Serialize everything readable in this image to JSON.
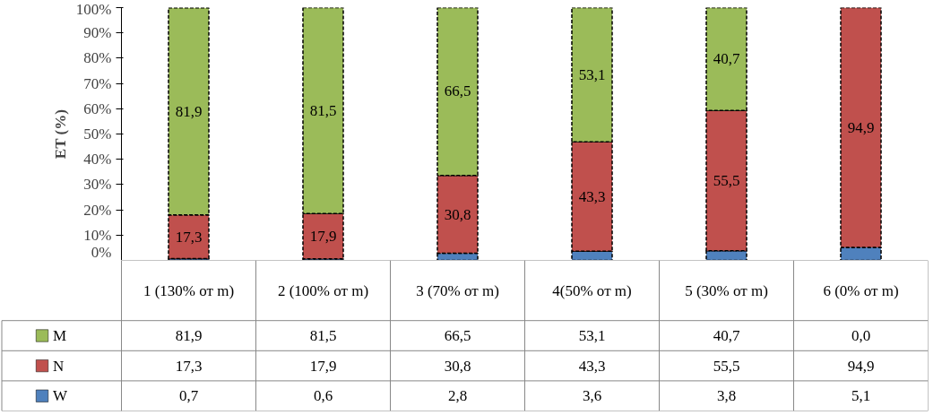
{
  "chart_data": {
    "type": "bar",
    "stacked": true,
    "ylabel": "ET (%)",
    "categories": [
      "1 (130% от m)",
      "2 (100% от m)",
      "3 (70% от m)",
      "4(50% от m)",
      "5 (30% от m)",
      "6 (0% от m)"
    ],
    "series": [
      {
        "name": "W",
        "color": "#4f81bd",
        "values": [
          0.7,
          0.6,
          2.8,
          3.6,
          3.8,
          5.1
        ],
        "value_labels": [
          "0,7",
          "0,6",
          "2,8",
          "3,6",
          "3,8",
          "5,1"
        ]
      },
      {
        "name": "N",
        "color": "#c0504d",
        "values": [
          17.3,
          17.9,
          30.8,
          43.3,
          55.5,
          94.9
        ],
        "value_labels": [
          "17,3",
          "17,9",
          "30,8",
          "43,3",
          "55,5",
          "94,9"
        ]
      },
      {
        "name": "M",
        "color": "#9bbb59",
        "values": [
          81.9,
          81.5,
          66.5,
          53.1,
          40.7,
          0.0
        ],
        "value_labels": [
          "81,9",
          "81,5",
          "66,5",
          "53,1",
          "40,7",
          "0,0"
        ]
      }
    ],
    "ylim": [
      0,
      100
    ],
    "yticks": [
      {
        "value": 0,
        "label": "0%"
      },
      {
        "value": 10,
        "label": "10%"
      },
      {
        "value": 20,
        "label": "20%"
      },
      {
        "value": 30,
        "label": "30%"
      },
      {
        "value": 40,
        "label": "40%"
      },
      {
        "value": 50,
        "label": "50%"
      },
      {
        "value": 60,
        "label": "60%"
      },
      {
        "value": 70,
        "label": "70%"
      },
      {
        "value": 80,
        "label": "80%"
      },
      {
        "value": 90,
        "label": "90%"
      },
      {
        "value": 100,
        "label": "100%"
      }
    ],
    "grid": false,
    "legend": "bottom left",
    "line_style": "dashed"
  }
}
